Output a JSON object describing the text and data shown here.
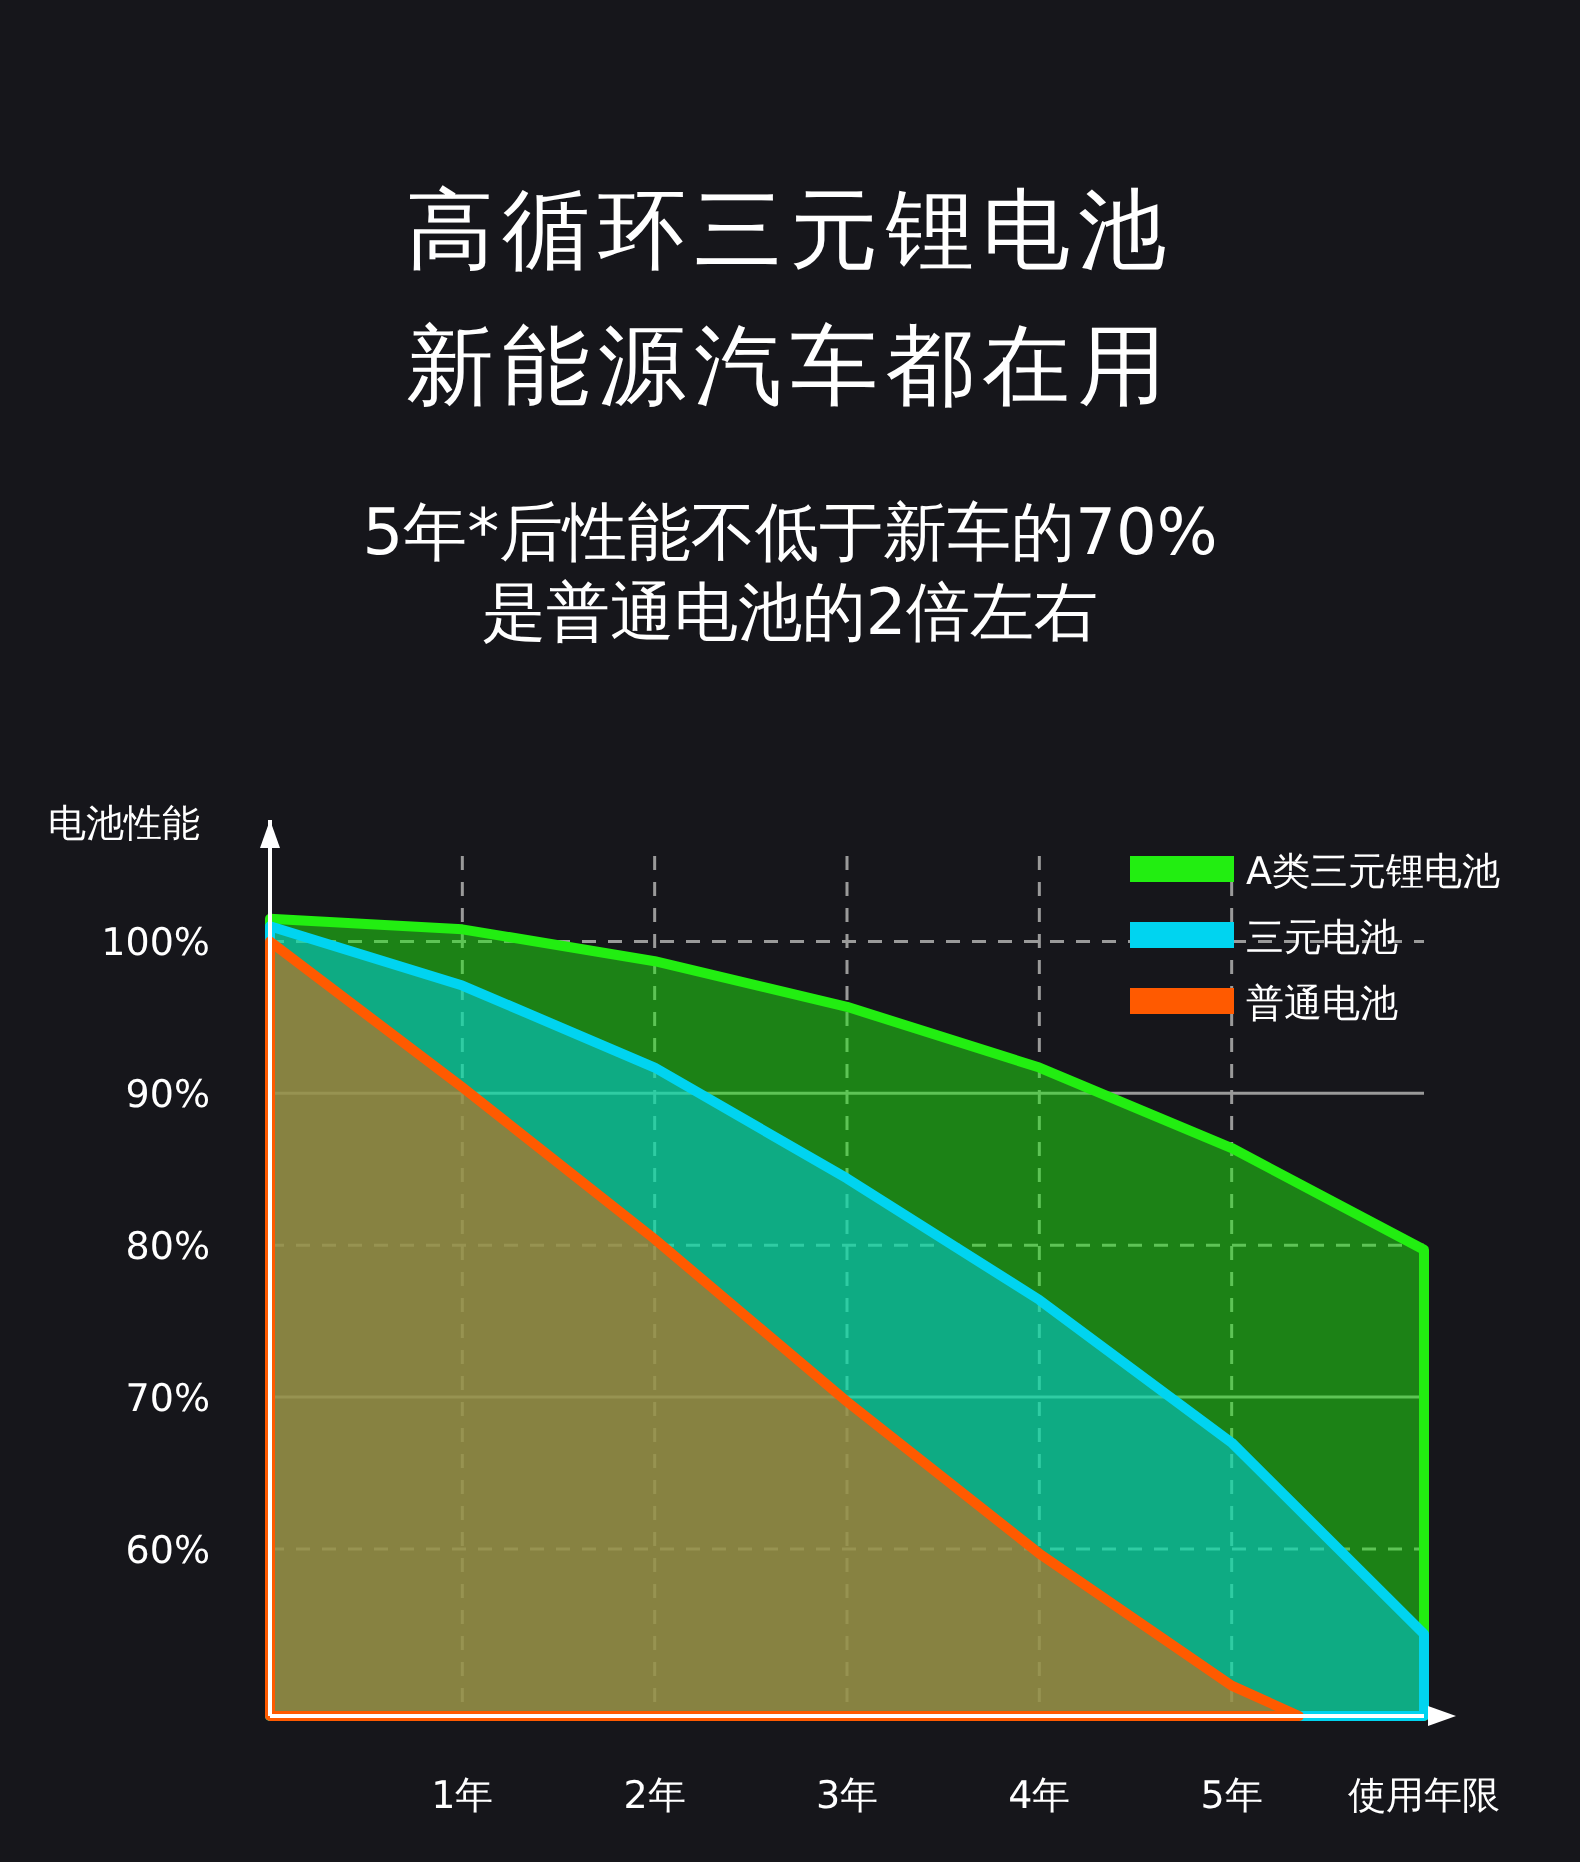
{
  "chart_data": {
    "type": "area",
    "title": "高循环三元锂电池新能源汽车都在用",
    "subtitle": "5年*后性能不低于新车的70%\n是普通电池的2倍左右",
    "xlabel": "使用年限",
    "ylabel": "电池性能",
    "xlim": [
      0,
      6
    ],
    "ylim": [
      49,
      108
    ],
    "xticks": [
      {
        "value": 1,
        "label": "1年"
      },
      {
        "value": 2,
        "label": "2年"
      },
      {
        "value": 3,
        "label": "3年"
      },
      {
        "value": 4,
        "label": "4年"
      },
      {
        "value": 5,
        "label": "5年"
      }
    ],
    "yticks": [
      {
        "value": 60,
        "label": "60%"
      },
      {
        "value": 70,
        "label": "70%"
      },
      {
        "value": 80,
        "label": "80%"
      },
      {
        "value": 90,
        "label": "90%"
      },
      {
        "value": 100,
        "label": "100%"
      }
    ],
    "grid": true,
    "legend": "top right",
    "series": [
      {
        "name": "A类三元锂电池",
        "color": "#22ee11",
        "x": [
          0,
          1,
          2,
          3,
          4,
          5,
          6
        ],
        "values": [
          101.5,
          100.8,
          98.7,
          95.7,
          91.7,
          86.4,
          79.7
        ]
      },
      {
        "name": "三元电池",
        "color": "#00d4f0",
        "x": [
          0,
          1,
          2,
          3,
          4,
          5,
          6
        ],
        "values": [
          101,
          97.1,
          91.7,
          84.4,
          76.4,
          67,
          54.4
        ]
      },
      {
        "name": "普通电池",
        "color": "#ff5a00",
        "x": [
          0,
          1,
          2,
          3,
          4,
          5,
          5.35
        ],
        "values": [
          100,
          90.4,
          80.4,
          69.7,
          59.7,
          51,
          49
        ]
      }
    ]
  }
}
